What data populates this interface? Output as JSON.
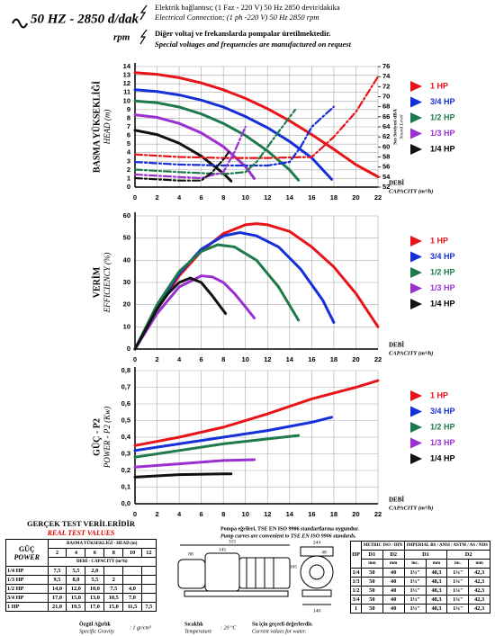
{
  "header": {
    "title": "50 HZ - 2850 d/dak",
    "rpm": "rpm",
    "line1": "Elektrik bağlantısı; (1 Faz - 220 V) 50 Hz 2850 devir/dakika",
    "line2": "Electrical Connection; (1 ph -220 V) 50 Hz 2850 rpm",
    "line3": "Diğer voltaj ve frekanslarda pompalar üretilmektedir.",
    "line4": "Special voltages and frequencies  are manufactured on request"
  },
  "chart_data": [
    {
      "type": "line",
      "ylabel": "BASMA YÜKSEKLİĞİ",
      "ylabel_en": "HEAD (m)",
      "xlabel": "DEBİ",
      "xlabel_en": "CAPACITY (m³/h)",
      "y2label": "Ses Seviyesi dBA",
      "y2label_en": "Sound Level",
      "xlim": [
        0,
        22
      ],
      "xticks": [
        0,
        2,
        4,
        6,
        8,
        10,
        12,
        14,
        16,
        18,
        20,
        22
      ],
      "ylim": [
        0,
        14
      ],
      "yticks": [
        0,
        1,
        2,
        3,
        4,
        5,
        6,
        7,
        8,
        9,
        10,
        11,
        12,
        13,
        14
      ],
      "y2lim": [
        52,
        76
      ],
      "y2ticks": [
        52,
        54,
        56,
        58,
        60,
        62,
        64,
        66,
        68,
        70,
        72,
        74,
        76
      ],
      "grid": true,
      "series": [
        {
          "name": "1 HP",
          "color": "#e8141a",
          "x": [
            0,
            2,
            4,
            6,
            8,
            10,
            12,
            14,
            16,
            18,
            20,
            22
          ],
          "values": [
            13.3,
            13.1,
            12.7,
            12.1,
            11.3,
            10.3,
            9.1,
            7.7,
            6.1,
            4.4,
            2.6,
            1.2
          ]
        },
        {
          "name": "3/4 HP",
          "color": "#1530d8",
          "x": [
            0,
            2,
            4,
            6,
            8,
            10,
            12,
            14,
            16,
            17.8
          ],
          "values": [
            11.3,
            11.1,
            10.7,
            10.1,
            9.3,
            8.2,
            6.9,
            5.3,
            3.4,
            0.9
          ]
        },
        {
          "name": "1/2 HP",
          "color": "#1d7a4a",
          "x": [
            0,
            2,
            4,
            6,
            8,
            10,
            12,
            14,
            14.8
          ],
          "values": [
            10,
            9.8,
            9.3,
            8.5,
            7.4,
            6,
            4.2,
            2,
            0.8
          ]
        },
        {
          "name": "1/3 HP",
          "color": "#9b30d0",
          "x": [
            0,
            2,
            4,
            6,
            8,
            10,
            10.8
          ],
          "values": [
            8.4,
            8.1,
            7.4,
            6.3,
            4.7,
            2.4,
            1
          ]
        },
        {
          "name": "1/4 HP",
          "color": "#111111",
          "x": [
            0,
            2,
            4,
            6,
            8,
            8.7
          ],
          "values": [
            6.6,
            6.1,
            5.1,
            3.6,
            1.6,
            0.7
          ]
        },
        {
          "axis": "y2",
          "line_style": "dash-dot",
          "color": "#e8141a",
          "x": [
            0,
            4,
            8,
            12,
            16,
            18,
            20,
            22
          ],
          "values": [
            58.5,
            58,
            57.8,
            57.8,
            58,
            62,
            67,
            74
          ]
        },
        {
          "axis": "y2",
          "line_style": "dash-dot",
          "color": "#1530d8",
          "x": [
            0,
            4,
            8,
            12,
            14,
            15,
            16,
            17,
            18
          ],
          "values": [
            57,
            56.5,
            56.3,
            56.3,
            57,
            60,
            64,
            66,
            68
          ]
        },
        {
          "axis": "y2",
          "line_style": "dash-dot",
          "color": "#1d7a4a",
          "x": [
            0,
            4,
            8,
            10,
            11,
            12,
            13,
            14.5
          ],
          "values": [
            55.5,
            55,
            54.6,
            55,
            57,
            60,
            63,
            67.4
          ]
        },
        {
          "axis": "y2",
          "line_style": "dash-dot",
          "color": "#9b30d0",
          "x": [
            0,
            4,
            6,
            8,
            9,
            10
          ],
          "values": [
            54.5,
            54,
            53.8,
            55,
            59,
            64
          ]
        },
        {
          "axis": "y2",
          "line_style": "dash-dot",
          "color": "#111111",
          "x": [
            0,
            4,
            6,
            7,
            8,
            8.5
          ],
          "values": [
            53.8,
            53.3,
            53.3,
            55,
            57.5,
            59
          ]
        }
      ]
    },
    {
      "type": "line",
      "ylabel": "VERİM",
      "ylabel_en": "EFFICIENCY (%)",
      "xlabel": "DEBİ",
      "xlabel_en": "CAPACITY (m³/h)",
      "xlim": [
        0,
        22
      ],
      "xticks": [
        0,
        2,
        4,
        6,
        8,
        10,
        12,
        14,
        16,
        18,
        20,
        22
      ],
      "ylim": [
        0,
        60
      ],
      "yticks": [
        0,
        10,
        20,
        30,
        40,
        50,
        60
      ],
      "grid": true,
      "series": [
        {
          "name": "1 HP",
          "color": "#e8141a",
          "x": [
            0,
            2,
            4,
            6,
            8,
            10,
            11,
            12,
            14,
            16,
            18,
            20,
            22
          ],
          "values": [
            0,
            18,
            33,
            44,
            52,
            56,
            56.5,
            56,
            53,
            46,
            37,
            25,
            10
          ]
        },
        {
          "name": "3/4 HP",
          "color": "#1530d8",
          "x": [
            0,
            2,
            4,
            6,
            8,
            9.5,
            11,
            13,
            15,
            17,
            18
          ],
          "values": [
            0,
            19,
            34,
            45,
            51,
            52.5,
            51,
            46,
            36,
            22,
            12
          ]
        },
        {
          "name": "1/2 HP",
          "color": "#1d7a4a",
          "x": [
            0,
            2,
            4,
            6,
            7.5,
            9,
            11,
            13,
            14.8
          ],
          "values": [
            0,
            20,
            35,
            44,
            47,
            46,
            40,
            28,
            13
          ]
        },
        {
          "name": "1/3 HP",
          "color": "#9b30d0",
          "x": [
            0,
            2,
            4,
            6,
            7,
            8,
            9,
            10,
            10.8
          ],
          "values": [
            0,
            16,
            28,
            33,
            32.5,
            30,
            25,
            19,
            14
          ]
        },
        {
          "name": "1/4 HP",
          "color": "#111111",
          "x": [
            0,
            1,
            2,
            3,
            4,
            5,
            6,
            7,
            8.2
          ],
          "values": [
            0,
            9,
            18,
            25,
            30,
            32,
            30,
            24,
            16
          ]
        }
      ]
    },
    {
      "type": "line",
      "ylabel": "GÜÇ - P2",
      "ylabel_en": "POWER - P2 (Kw)",
      "xlabel": "DEBİ",
      "xlabel_en": "CAPACITY (m³/h)",
      "xlim": [
        0,
        22
      ],
      "xticks": [
        0,
        2,
        4,
        6,
        8,
        10,
        12,
        14,
        16,
        18,
        20,
        22
      ],
      "ylim": [
        0,
        0.8
      ],
      "yticks": [
        {
          "value": 0,
          "label": "0,0"
        },
        {
          "value": 0.1,
          "label": "0,1"
        },
        {
          "value": 0.2,
          "label": "0,2"
        },
        {
          "value": 0.3,
          "label": "0,3"
        },
        {
          "value": 0.4,
          "label": "0,4"
        },
        {
          "value": 0.5,
          "label": "0,5"
        },
        {
          "value": 0.6,
          "label": "0,6"
        },
        {
          "value": 0.7,
          "label": "0,7"
        },
        {
          "value": 0.8,
          "label": "0,8"
        }
      ],
      "grid": true,
      "series": [
        {
          "name": "1 HP",
          "color": "#e8141a",
          "x": [
            0,
            4,
            8,
            12,
            16,
            20,
            22
          ],
          "values": [
            0.35,
            0.4,
            0.46,
            0.54,
            0.63,
            0.7,
            0.74
          ]
        },
        {
          "name": "3/4 HP",
          "color": "#1530d8",
          "x": [
            0,
            4,
            8,
            12,
            16,
            17.8
          ],
          "values": [
            0.32,
            0.36,
            0.4,
            0.44,
            0.49,
            0.52
          ]
        },
        {
          "name": "1/2 HP",
          "color": "#1d7a4a",
          "x": [
            0,
            4,
            8,
            12,
            14.8
          ],
          "values": [
            0.28,
            0.32,
            0.36,
            0.39,
            0.41
          ]
        },
        {
          "name": "1/3 HP",
          "color": "#9b30d0",
          "x": [
            0,
            4,
            8,
            10.8
          ],
          "values": [
            0.22,
            0.24,
            0.26,
            0.265
          ]
        },
        {
          "name": "1/4 HP",
          "color": "#111111",
          "x": [
            0,
            4,
            8,
            8.7
          ],
          "values": [
            0.16,
            0.175,
            0.18,
            0.18
          ]
        }
      ]
    }
  ],
  "test_table": {
    "title": "GERÇEK TEST VERİLERİDİR",
    "title_en": "REAL TEST VALUES",
    "power_label": "GÜÇ",
    "power_label_en": "POWER",
    "head_label": "BASMA YÜKSEKLİĞİ - HEAD (m)",
    "heads": [
      2,
      4,
      6,
      8,
      10,
      12
    ],
    "capacity_label": "DEBİ - CAPACITY (m³/h)",
    "rows": [
      [
        "1/4 HP",
        "7,5",
        "5,5",
        "2,0",
        "",
        "",
        ""
      ],
      [
        "1/3 HP",
        "9,5",
        "8,0",
        "5,5",
        "2",
        "",
        ""
      ],
      [
        "1/2 HP",
        "14,0",
        "12,0",
        "10,0",
        "7,5",
        "4,0",
        ""
      ],
      [
        "3/4 HP",
        "17,0",
        "15,0",
        "13,0",
        "10,5",
        "7,0",
        ""
      ],
      [
        "1 HP",
        "21,0",
        "19,5",
        "17,0",
        "15,0",
        "11,5",
        "7,5"
      ]
    ]
  },
  "drawing": {
    "note": "Pompa eğrileri, TSE EN ISO 9906 standartlarına uygundur.",
    "note_en": "Pump curves are convenient to TSE EN ISO 9906 standards.",
    "dimensions": [
      "315",
      "88",
      "145",
      "165",
      "244",
      "48",
      "140"
    ]
  },
  "connection_table": {
    "hp": "HP",
    "metric": "METRIC ISO / DIN",
    "imperial": "IMPERIAL BS / ANSI / ASTM / AS / NDS",
    "d1": "D1",
    "d2": "D2",
    "mm": "mm",
    "inc": "inc.",
    "rows": [
      [
        "1/4",
        "50",
        "40",
        "1½\"",
        "48,3",
        "1¼\"",
        "42,3"
      ],
      [
        "1/3",
        "50",
        "40",
        "1½\"",
        "48,3",
        "1¼\"",
        "42,3"
      ],
      [
        "1/2",
        "50",
        "40",
        "1½\"",
        "48,3",
        "1¼\"",
        "42,3"
      ],
      [
        "3/4",
        "50",
        "40",
        "1½\"",
        "48,3",
        "1¼\"",
        "42,3"
      ],
      [
        "1",
        "50",
        "40",
        "1½\"",
        "48,3",
        "1¼\"",
        "42,3"
      ]
    ]
  },
  "footer": {
    "gravity": "Özgül Ağırlık",
    "gravity_en": "Specific Gravity",
    "gravity_value": ": 1 gr/cm³",
    "temperature": "Sıcaklık",
    "temperature_en": "Temperature",
    "temperature_value": ": 20 °C",
    "water": "Su için geçerli değerlerdir.",
    "water_en": "Current values for water."
  }
}
